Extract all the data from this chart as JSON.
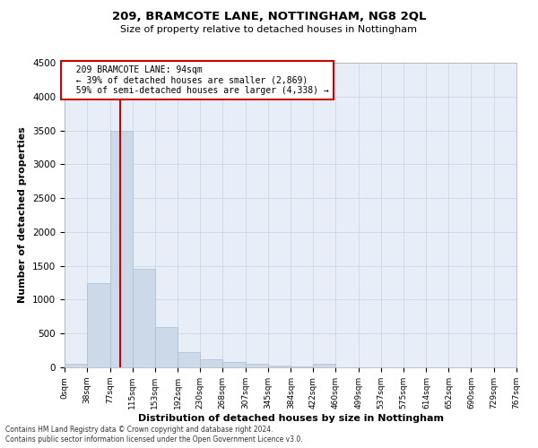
{
  "title1": "209, BRAMCOTE LANE, NOTTINGHAM, NG8 2QL",
  "title2": "Size of property relative to detached houses in Nottingham",
  "xlabel": "Distribution of detached houses by size in Nottingham",
  "ylabel": "Number of detached properties",
  "annotation_line1": "209 BRAMCOTE LANE: 94sqm",
  "annotation_line2": "← 39% of detached houses are smaller (2,869)",
  "annotation_line3": "59% of semi-detached houses are larger (4,338) →",
  "property_size": 94,
  "bin_edges": [
    0,
    38,
    77,
    115,
    153,
    192,
    230,
    268,
    307,
    345,
    384,
    422,
    460,
    499,
    537,
    575,
    614,
    652,
    690,
    729,
    767
  ],
  "bar_values": [
    50,
    1250,
    3500,
    1450,
    600,
    230,
    115,
    80,
    50,
    30,
    10,
    50,
    5,
    2,
    1,
    0,
    0,
    0,
    0,
    0
  ],
  "bar_color": "#ccd9e8",
  "bar_edge_color": "#a8bfcf",
  "vline_color": "#cc0000",
  "vline_x": 94,
  "annotation_box_edgecolor": "#cc0000",
  "grid_color": "#c8d4e0",
  "background_color": "#e8eef8",
  "ylim": [
    0,
    4500
  ],
  "yticks": [
    0,
    500,
    1000,
    1500,
    2000,
    2500,
    3000,
    3500,
    4000,
    4500
  ],
  "footer1": "Contains HM Land Registry data © Crown copyright and database right 2024.",
  "footer2": "Contains public sector information licensed under the Open Government Licence v3.0."
}
